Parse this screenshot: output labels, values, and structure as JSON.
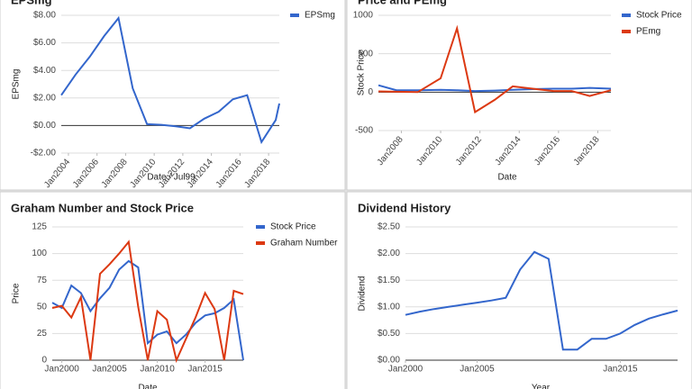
{
  "chart_data": [
    {
      "type": "line",
      "title": "EPSmg",
      "x_label": "Date / Jul99",
      "y_label": "EPSmg",
      "x": [
        "2003-07",
        "2004-07",
        "2005-07",
        "2006-07",
        "2007-07",
        "2008-07",
        "2009-07",
        "2010-07",
        "2011-07",
        "2012-07",
        "2013-07",
        "2014-07",
        "2015-07",
        "2016-07",
        "2017-07",
        "2018-07",
        "2018-10"
      ],
      "series": [
        {
          "name": "EPSmg",
          "color": "#3366cc",
          "values": [
            2.2,
            3.7,
            5.0,
            6.5,
            7.8,
            2.7,
            0.1,
            0.05,
            -0.05,
            -0.2,
            0.5,
            1.0,
            1.9,
            2.2,
            -1.2,
            0.4,
            1.6
          ]
        }
      ],
      "xlim": [
        "2003-07",
        "2018-10"
      ],
      "xticks": [
        {
          "value": "2004-01",
          "label": "Jan2004"
        },
        {
          "value": "2006-01",
          "label": "Jan2006"
        },
        {
          "value": "2008-01",
          "label": "Jan2008"
        },
        {
          "value": "2010-01",
          "label": "Jan2010"
        },
        {
          "value": "2012-01",
          "label": "Jan2012"
        },
        {
          "value": "2014-01",
          "label": "Jan2014"
        },
        {
          "value": "2016-01",
          "label": "Jan2016"
        },
        {
          "value": "2018-01",
          "label": "Jan2018"
        }
      ],
      "ylim": [
        -2,
        8
      ],
      "yticks": [
        {
          "value": 8,
          "label": "$8.00"
        },
        {
          "value": 6,
          "label": "$6.00"
        },
        {
          "value": 4,
          "label": "$4.00"
        },
        {
          "value": 2,
          "label": "$2.00"
        },
        {
          "value": 0,
          "label": "$0.00"
        },
        {
          "value": -2,
          "label": "-$2.00"
        }
      ],
      "grid": true,
      "legend": "right"
    },
    {
      "type": "line",
      "title": "Price and PEmg",
      "x_label": "Date",
      "y_label": "Stock Price",
      "x": [
        "2006-11",
        "2007-10",
        "2008-11",
        "2010-01",
        "2010-11",
        "2011-10",
        "2012-10",
        "2013-09",
        "2014-11",
        "2015-10",
        "2016-09",
        "2017-08",
        "2018-09"
      ],
      "series": [
        {
          "name": "Stock Price",
          "color": "#3366cc",
          "values": [
            90,
            25,
            25,
            30,
            25,
            15,
            20,
            30,
            40,
            45,
            45,
            55,
            45
          ]
        },
        {
          "name": "PEmg",
          "color": "#dc3912",
          "values": [
            10,
            5,
            0,
            180,
            830,
            -260,
            -100,
            75,
            40,
            15,
            15,
            -50,
            25
          ]
        }
      ],
      "xlim": [
        "2006-11",
        "2018-09"
      ],
      "xticks": [
        {
          "value": "2008-01",
          "label": "Jan2008"
        },
        {
          "value": "2010-01",
          "label": "Jan2010"
        },
        {
          "value": "2012-01",
          "label": "Jan2012"
        },
        {
          "value": "2014-01",
          "label": "Jan2014"
        },
        {
          "value": "2016-01",
          "label": "Jan2016"
        },
        {
          "value": "2018-01",
          "label": "Jan2018"
        }
      ],
      "ylim": [
        -500,
        1000
      ],
      "yticks": [
        1000,
        500,
        0,
        -500
      ],
      "grid": true,
      "legend": "right"
    },
    {
      "type": "line",
      "title": "Graham Number and Stock Price",
      "x_label": "Date",
      "y_label": "Price",
      "x": [
        "1999-01",
        "2000-01",
        "2001-01",
        "2002-01",
        "2003-01",
        "2004-01",
        "2005-01",
        "2006-01",
        "2007-01",
        "2008-01",
        "2009-01",
        "2010-01",
        "2011-01",
        "2012-01",
        "2013-01",
        "2014-01",
        "2015-01",
        "2016-01",
        "2017-01",
        "2018-01",
        "2019-01"
      ],
      "series": [
        {
          "name": "Stock Price",
          "color": "#3366cc",
          "values": [
            54,
            49,
            70,
            63,
            46,
            58,
            68,
            85,
            93,
            87,
            16,
            24,
            27,
            16,
            24,
            35,
            42,
            44,
            49,
            57,
            0
          ]
        },
        {
          "name": "Graham Number",
          "color": "#dc3912",
          "values": [
            49,
            51,
            40,
            59,
            0,
            81,
            90,
            100,
            111,
            50,
            0,
            46,
            38,
            0,
            20,
            40,
            63,
            48,
            0,
            65,
            62
          ]
        }
      ],
      "xlim": [
        "1999-01",
        "2019-01"
      ],
      "xticks": [
        {
          "value": "2000-01",
          "label": "Jan2000"
        },
        {
          "value": "2005-01",
          "label": "Jan2005"
        },
        {
          "value": "2010-01",
          "label": "Jan2010"
        },
        {
          "value": "2015-01",
          "label": "Jan2015"
        }
      ],
      "ylim": [
        0,
        125
      ],
      "yticks": [
        0,
        25,
        50,
        75,
        100,
        125
      ],
      "grid": true,
      "legend": "right"
    },
    {
      "type": "line",
      "title": "Dividend History",
      "x_label": "Year",
      "y_label": "Dividend",
      "x": [
        "2000-01",
        "2001-01",
        "2002-01",
        "2003-01",
        "2004-01",
        "2005-01",
        "2006-01",
        "2007-01",
        "2008-01",
        "2009-01",
        "2010-01",
        "2011-01",
        "2012-01",
        "2013-01",
        "2014-01",
        "2015-01",
        "2016-01",
        "2017-01",
        "2018-01",
        "2019-01"
      ],
      "values": [
        0.85,
        0.91,
        0.96,
        1.0,
        1.04,
        1.08,
        1.12,
        1.17,
        1.7,
        2.03,
        1.9,
        0.2,
        0.2,
        0.4,
        0.4,
        0.5,
        0.66,
        0.78,
        0.86,
        0.93
      ],
      "color": "#3366cc",
      "xlim": [
        "2000-01",
        "2019-01"
      ],
      "xticks": [
        {
          "value": "2000-01",
          "label": "Jan2000"
        },
        {
          "value": "2005-01",
          "label": "Jan2005"
        },
        {
          "value": "2015-01",
          "label": "Jan2015"
        }
      ],
      "ylim": [
        0,
        2.5
      ],
      "yticks": [
        {
          "value": 0,
          "label": "$0.00"
        },
        {
          "value": 0.5,
          "label": "$0.50"
        },
        {
          "value": 1,
          "label": "$1.00"
        },
        {
          "value": 1.5,
          "label": "$1.50"
        },
        {
          "value": 2,
          "label": "$2.00"
        },
        {
          "value": 2.5,
          "label": "$2.50"
        }
      ],
      "grid": true
    }
  ]
}
